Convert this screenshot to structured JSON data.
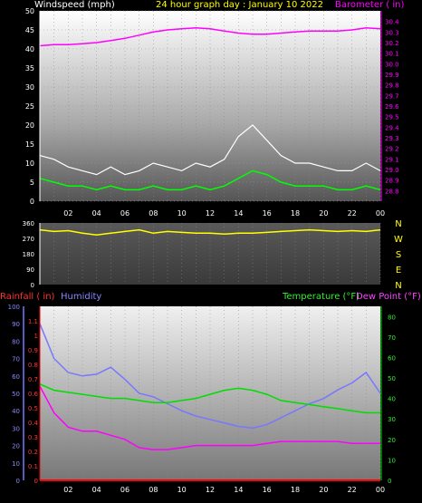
{
  "header": {
    "windspeed_label": "Windspeed (mph)",
    "title": "24 hour graph day : January 10 2022",
    "barometer_label": "Barometer ( in)"
  },
  "bottom_labels": {
    "rainfall": "Rainfall ( in)",
    "humidity": "Humidity",
    "temperature": "Temperature (°F)",
    "dewpoint": "Dew Point (°F)"
  },
  "colors": {
    "windspeed": "#ffffff",
    "windgust": "#00ff00",
    "barometer": "#ff00ff",
    "winddir": "#ffff00",
    "rainfall": "#ff0000",
    "humidity": "#7777ff",
    "temperature": "#00dd00",
    "dewpoint": "#ff00ff"
  },
  "chart_data": [
    {
      "type": "line",
      "name": "wind-barometer",
      "x_ticks": [
        "02",
        "04",
        "06",
        "08",
        "10",
        "12",
        "14",
        "16",
        "18",
        "20",
        "22",
        "00"
      ],
      "left_axis": {
        "label": "Windspeed (mph)",
        "ylim": [
          0,
          50
        ],
        "ticks": [
          "0",
          "5",
          "10",
          "15",
          "20",
          "25",
          "30",
          "35",
          "40",
          "45",
          "50"
        ]
      },
      "right_axis": {
        "label": "Barometer ( in)",
        "ylim": [
          28.7,
          30.5
        ],
        "ticks": [
          "28.8",
          "28.9",
          "29.0",
          "29.1",
          "29.2",
          "29.3",
          "29.4",
          "29.5",
          "29.6",
          "29.7",
          "29.8",
          "29.9",
          "30.0",
          "30.1",
          "30.2",
          "30.3",
          "30.4"
        ]
      },
      "series": [
        {
          "axis": "right",
          "x": [
            0,
            1,
            2,
            3,
            4,
            5,
            6,
            7,
            8,
            9,
            10,
            11,
            12,
            13,
            14,
            15,
            16,
            17,
            18,
            19,
            20,
            21,
            22,
            23,
            24
          ],
          "values": [
            30.17,
            30.18,
            30.18,
            30.19,
            30.2,
            30.22,
            30.24,
            30.27,
            30.3,
            30.32,
            30.33,
            30.34,
            30.33,
            30.31,
            30.29,
            30.28,
            30.28,
            30.29,
            30.3,
            30.31,
            30.31,
            30.31,
            30.32,
            30.34,
            30.33
          ]
        },
        {
          "axis": "left",
          "x": [
            0,
            1,
            2,
            3,
            4,
            5,
            6,
            7,
            8,
            9,
            10,
            11,
            12,
            13,
            14,
            15,
            16,
            17,
            18,
            19,
            20,
            21,
            22,
            23,
            24
          ],
          "values": [
            6,
            5,
            4,
            4,
            3,
            4,
            3,
            3,
            4,
            3,
            3,
            4,
            3,
            4,
            6,
            8,
            7,
            5,
            4,
            4,
            4,
            3,
            3,
            4,
            3
          ]
        },
        {
          "axis": "left",
          "x": [
            0,
            1,
            2,
            3,
            4,
            5,
            6,
            7,
            8,
            9,
            10,
            11,
            12,
            13,
            14,
            15,
            16,
            17,
            18,
            19,
            20,
            21,
            22,
            23,
            24
          ],
          "values": [
            12,
            11,
            9,
            8,
            7,
            9,
            7,
            8,
            10,
            9,
            8,
            10,
            9,
            11,
            17,
            20,
            16,
            12,
            10,
            10,
            9,
            8,
            8,
            10,
            8
          ]
        }
      ]
    },
    {
      "type": "line",
      "name": "wind-direction",
      "left_axis": {
        "ylim": [
          0,
          360
        ],
        "ticks": [
          "0",
          "90",
          "180",
          "270",
          "360"
        ]
      },
      "right_labels": [
        "N",
        "W",
        "S",
        "E",
        "N"
      ],
      "series": [
        {
          "x": [
            0,
            1,
            2,
            3,
            4,
            5,
            6,
            7,
            8,
            9,
            10,
            11,
            12,
            13,
            14,
            15,
            16,
            17,
            18,
            19,
            20,
            21,
            22,
            23,
            24
          ],
          "values": [
            320,
            310,
            315,
            300,
            290,
            300,
            310,
            320,
            300,
            310,
            305,
            300,
            300,
            295,
            300,
            300,
            305,
            310,
            315,
            320,
            315,
            310,
            315,
            310,
            320
          ]
        }
      ]
    },
    {
      "type": "line",
      "name": "rain-humidity-temperature",
      "x_ticks": [
        "02",
        "04",
        "06",
        "08",
        "10",
        "12",
        "14",
        "16",
        "18",
        "20",
        "22",
        "00"
      ],
      "rain_axis": {
        "label": "Rainfall ( in)",
        "ylim": [
          0,
          1.2
        ],
        "ticks": [
          "0",
          "0.1",
          "0.2",
          "0.3",
          "0.4",
          "0.5",
          "0.6",
          "0.7",
          "0.8",
          "0.9",
          "1",
          "1.1"
        ]
      },
      "humidity_axis": {
        "label": "Humidity",
        "ylim": [
          0,
          100
        ],
        "ticks": [
          "0",
          "10",
          "20",
          "30",
          "40",
          "50",
          "60",
          "70",
          "80",
          "90",
          "100"
        ]
      },
      "temp_axis": {
        "label": "Temperature (°F)",
        "ylim": [
          0,
          85
        ],
        "ticks": [
          "0",
          "10",
          "20",
          "30",
          "40",
          "50",
          "60",
          "70",
          "80"
        ]
      },
      "series": [
        {
          "axis": "humidity",
          "x": [
            0,
            1,
            2,
            3,
            4,
            5,
            6,
            7,
            8,
            9,
            10,
            11,
            12,
            13,
            14,
            15,
            16,
            17,
            18,
            19,
            20,
            21,
            22,
            23,
            24
          ],
          "values": [
            90,
            70,
            62,
            60,
            61,
            65,
            58,
            50,
            48,
            44,
            40,
            37,
            35,
            33,
            31,
            30,
            32,
            36,
            40,
            44,
            47,
            52,
            56,
            62,
            50
          ]
        },
        {
          "axis": "temp",
          "x": [
            0,
            1,
            2,
            3,
            4,
            5,
            6,
            7,
            8,
            9,
            10,
            11,
            12,
            13,
            14,
            15,
            16,
            17,
            18,
            19,
            20,
            21,
            22,
            23,
            24
          ],
          "values": [
            47,
            44,
            43,
            42,
            41,
            40,
            40,
            39,
            38,
            38,
            39,
            40,
            42,
            44,
            45,
            44,
            42,
            39,
            38,
            37,
            36,
            35,
            34,
            33,
            33
          ]
        },
        {
          "axis": "temp",
          "x": [
            0,
            1,
            2,
            3,
            4,
            5,
            6,
            7,
            8,
            9,
            10,
            11,
            12,
            13,
            14,
            15,
            16,
            17,
            18,
            19,
            20,
            21,
            22,
            23,
            24
          ],
          "values": [
            46,
            33,
            26,
            24,
            24,
            22,
            20,
            16,
            15,
            15,
            16,
            17,
            17,
            17,
            17,
            17,
            18,
            19,
            19,
            19,
            19,
            19,
            18,
            18,
            18
          ]
        },
        {
          "axis": "rain",
          "x": [
            0,
            24
          ],
          "values": [
            0,
            0
          ]
        }
      ]
    }
  ]
}
